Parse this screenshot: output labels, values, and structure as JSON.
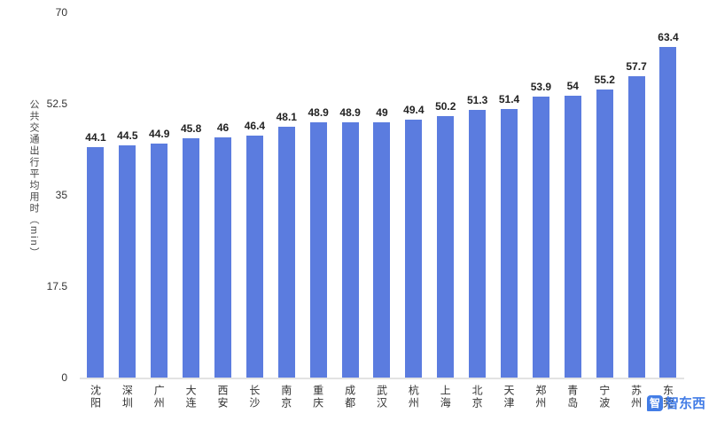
{
  "chart_data": {
    "type": "bar",
    "title": "",
    "xlabel": "",
    "ylabel": "公共交通出行平均用时（min）",
    "ylim": [
      0,
      70
    ],
    "yticks": [
      0,
      17.5,
      35,
      52.5,
      70
    ],
    "grid": false,
    "legend": false,
    "bar_color": "#5b7cdf",
    "categories": [
      "沈阳",
      "深圳",
      "广州",
      "大连",
      "西安",
      "长沙",
      "南京",
      "重庆",
      "成都",
      "武汉",
      "杭州",
      "上海",
      "北京",
      "天津",
      "郑州",
      "青岛",
      "宁波",
      "苏州",
      "东莞"
    ],
    "values": [
      44.1,
      44.5,
      44.9,
      45.8,
      46,
      46.4,
      48.1,
      48.9,
      48.9,
      49,
      49.4,
      50.2,
      51.3,
      51.4,
      53.9,
      54,
      55.2,
      57.7,
      63.4
    ]
  },
  "watermark": {
    "mark": "智",
    "text": "智东西"
  }
}
